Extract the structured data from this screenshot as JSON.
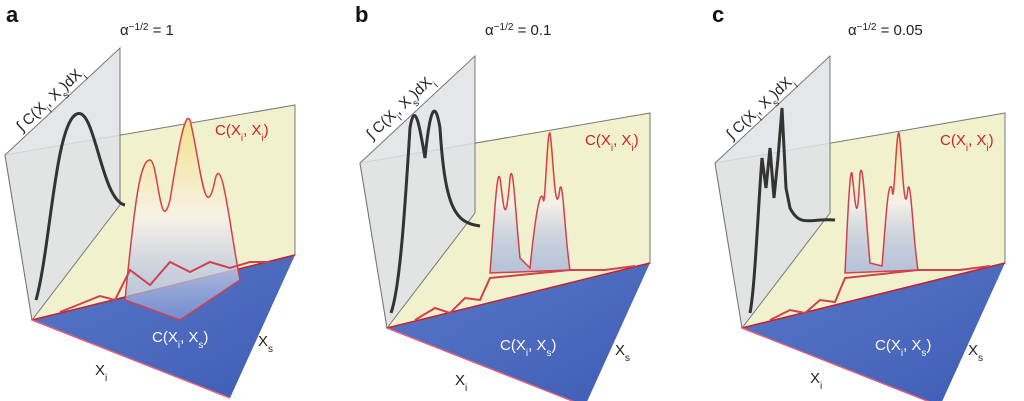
{
  "panels": [
    {
      "label": "a",
      "title": [
        "α",
        "−1/2",
        " = 1"
      ],
      "integral": [
        "∫ C(X",
        "i",
        ", X",
        "s",
        ")dX",
        "i"
      ],
      "diagonal": [
        "C(X",
        "i",
        ", X",
        "i",
        ")"
      ],
      "joint": [
        "C(X",
        "i",
        ", X",
        "s",
        ")"
      ],
      "x_i": [
        "X",
        "i"
      ],
      "x_s": [
        "X",
        "s"
      ]
    },
    {
      "label": "b",
      "title": [
        "α",
        "−1/2",
        " = 0.1"
      ],
      "integral": [
        "∫ C(X",
        "i",
        ", X",
        "s",
        ")dX",
        "i"
      ],
      "diagonal": [
        "C(X",
        "i",
        ", X",
        "i",
        ")"
      ],
      "joint": [
        "C(X",
        "i",
        ", X",
        "s",
        ")"
      ],
      "x_i": [
        "X",
        "i"
      ],
      "x_s": [
        "X",
        "s"
      ]
    },
    {
      "label": "c",
      "title": [
        "α",
        "−1/2",
        " = 0.05"
      ],
      "integral": [
        "∫ C(X",
        "i",
        ", X",
        "s",
        ")dX",
        "i"
      ],
      "diagonal": [
        "C(X",
        "i",
        ", X",
        "i",
        ")"
      ],
      "joint": [
        "C(X",
        "i",
        ", X",
        "s",
        ")"
      ],
      "x_i": [
        "X",
        "i"
      ],
      "x_s": [
        "X",
        "s"
      ]
    }
  ]
}
